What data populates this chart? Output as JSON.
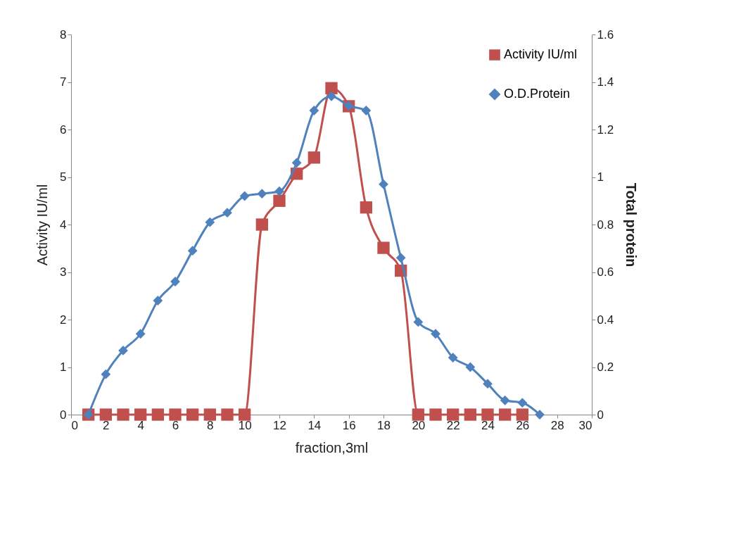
{
  "chart_data": {
    "type": "line",
    "xlabel": "fraction,3ml",
    "ylabel": "Activity IU/ml",
    "y2label": "Total protein",
    "x": [
      1,
      2,
      3,
      4,
      5,
      6,
      7,
      8,
      9,
      10,
      11,
      12,
      13,
      14,
      15,
      16,
      17,
      18,
      19,
      20,
      21,
      22,
      23,
      24,
      25,
      26,
      27
    ],
    "series": [
      {
        "name": "Activity IU/ml",
        "color": "#c0504d",
        "marker": "square",
        "x": [
          1,
          2,
          3,
          4,
          5,
          6,
          7,
          8,
          9,
          10,
          11,
          12,
          13,
          14,
          15,
          16,
          17,
          18,
          19,
          20,
          21,
          22,
          23,
          24,
          25,
          26
        ],
        "values": [
          0,
          0,
          0,
          0,
          0,
          0,
          0,
          0,
          0,
          0,
          4.0,
          4.5,
          5.07,
          5.41,
          6.87,
          6.49,
          4.36,
          3.51,
          3.03,
          0,
          0,
          0,
          0,
          0,
          0,
          0
        ]
      },
      {
        "name": "O.D.Protein",
        "color": "#4f81bd",
        "marker": "diamond",
        "axis": "y2",
        "values": [
          0,
          0.17,
          0.27,
          0.34,
          0.48,
          0.56,
          0.69,
          0.81,
          0.85,
          0.92,
          0.93,
          0.94,
          1.06,
          1.28,
          1.34,
          1.3,
          1.28,
          0.97,
          0.66,
          0.39,
          0.34,
          0.24,
          0.2,
          0.13,
          0.06,
          0.05,
          0
        ]
      }
    ],
    "xlim": [
      0,
      30
    ],
    "xticks": [
      0,
      2,
      4,
      6,
      8,
      10,
      12,
      14,
      16,
      18,
      20,
      22,
      24,
      26,
      28,
      30
    ],
    "ylim": [
      0,
      8
    ],
    "yticks": [
      0,
      1,
      2,
      3,
      4,
      5,
      6,
      7,
      8
    ],
    "y2lim": [
      0,
      1.6
    ],
    "y2ticks": [
      0,
      0.2,
      0.4,
      0.6,
      0.8,
      1,
      1.2,
      1.4,
      1.6
    ],
    "grid": false,
    "legend": "top right",
    "line_style": "solid"
  }
}
